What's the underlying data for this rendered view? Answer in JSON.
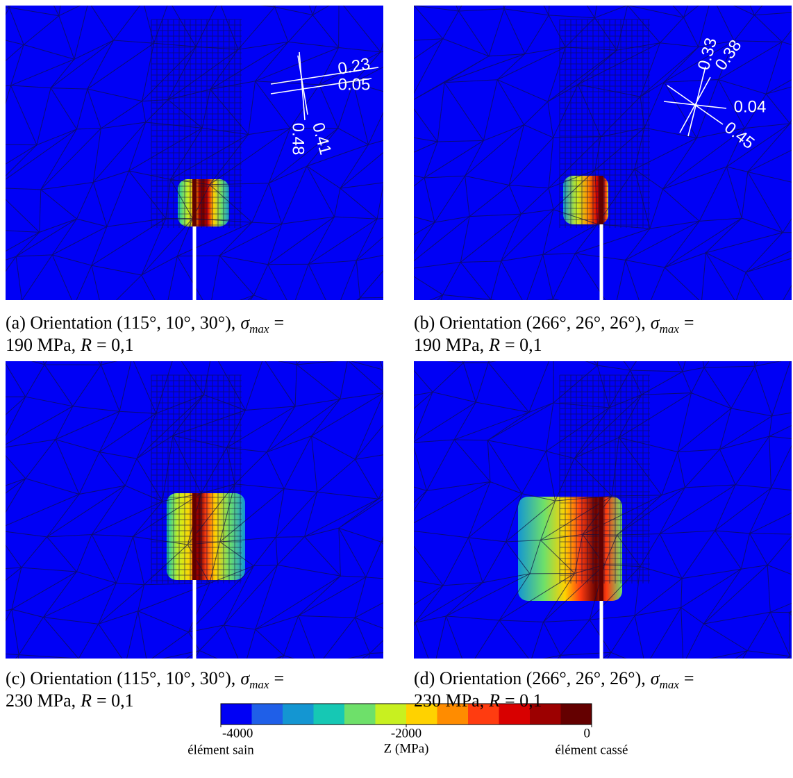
{
  "panels": [
    {
      "annotations": [
        "0.23",
        "0.05",
        "0.41",
        "0.48"
      ],
      "caption_line1": [
        "(a) Orientation (115°, 10°, 30°),",
        "σ",
        "max",
        "="
      ],
      "caption_line2": [
        "190 MPa,",
        "R",
        "= 0,1"
      ]
    },
    {
      "annotations": [
        "0.33",
        "0.38",
        "0.04",
        "0.45"
      ],
      "caption_line1": [
        "(b) Orientation (266°, 26°, 26°),",
        "σ",
        "max",
        "="
      ],
      "caption_line2": [
        "190 MPa,",
        "R",
        "= 0,1"
      ]
    },
    {
      "caption_line1": [
        "(c) Orientation (115°, 10°, 30°),",
        "σ",
        "max",
        "="
      ],
      "caption_line2": [
        "230 MPa,",
        "R",
        "= 0,1"
      ]
    },
    {
      "caption_line1": [
        "(d) Orientation (266°, 26°, 26°),",
        "σ",
        "max",
        "="
      ],
      "caption_line2": [
        "230 MPa,",
        "R",
        "= 0,1"
      ]
    }
  ],
  "colorbar": {
    "label": "Z (MPa)",
    "lim": [
      -4000,
      0
    ],
    "ticks": [
      -4000,
      -2000,
      0
    ],
    "left_label": "élément sain",
    "right_label": "élément cassé",
    "colors": [
      "#0000f5",
      "#1f5fe8",
      "#1496d2",
      "#16c8b4",
      "#6ee06a",
      "#c8f020",
      "#ffd200",
      "#ff8c00",
      "#ff3c10",
      "#d80000",
      "#9c0000",
      "#640000"
    ]
  }
}
